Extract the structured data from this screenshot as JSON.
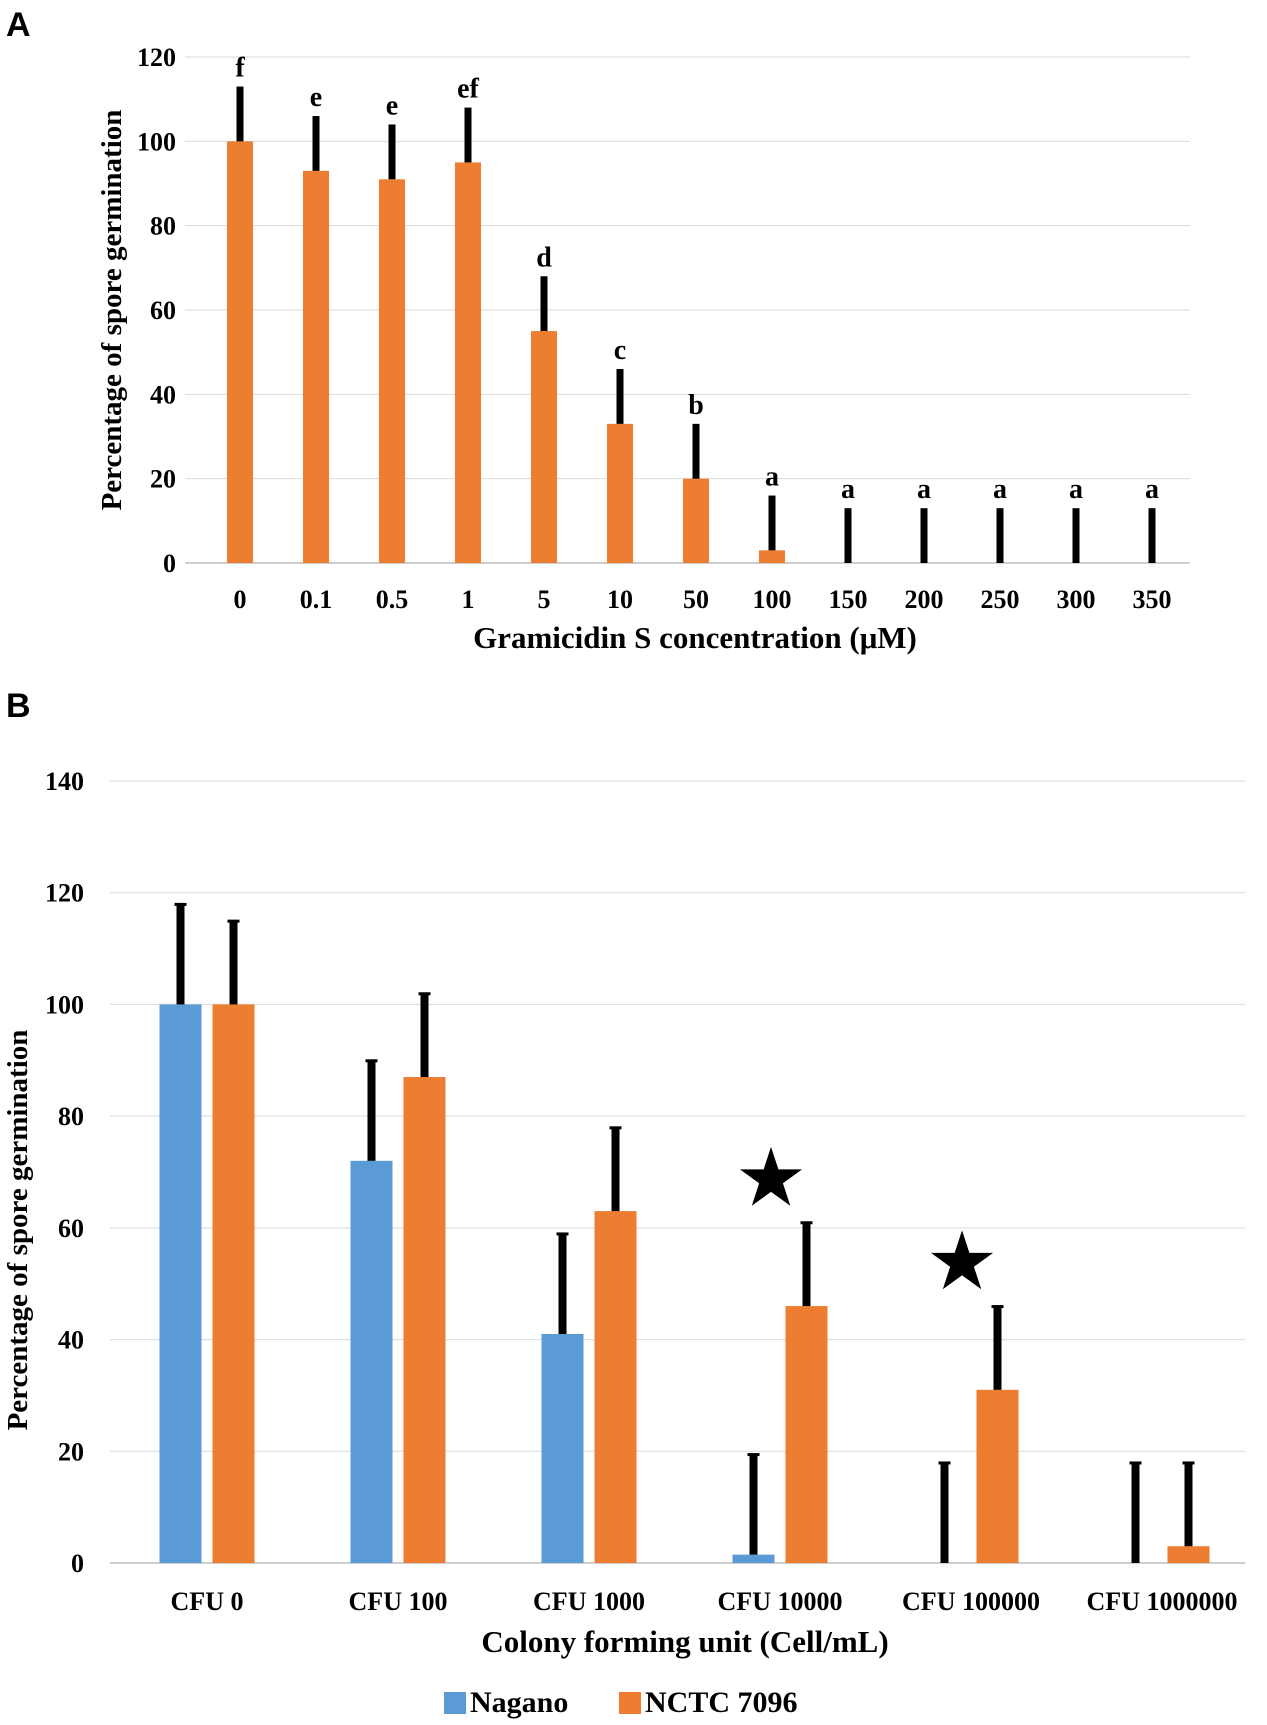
{
  "chart_data": [
    {
      "panel": "A",
      "type": "bar",
      "xlabel": "Gramicidin S concentration (μM)",
      "ylabel": "Percentage of spore germination",
      "ylim": [
        0,
        120
      ],
      "yticks": [
        0,
        20,
        40,
        60,
        80,
        100,
        120
      ],
      "grid": true,
      "bar_color": "#ED7D31",
      "error_color": "#000000",
      "categories": [
        "0",
        "0.1",
        "0.5",
        "1",
        "5",
        "10",
        "50",
        "100",
        "150",
        "200",
        "250",
        "300",
        "350"
      ],
      "values": [
        100,
        93,
        91,
        95,
        55,
        33,
        20,
        3,
        0,
        0,
        0,
        0,
        0
      ],
      "errors": [
        13,
        13,
        13,
        13,
        13,
        13,
        13,
        13,
        13,
        13,
        13,
        13,
        13
      ],
      "significance_letters": [
        "f",
        "e",
        "e",
        "ef",
        "d",
        "c",
        "b",
        "a",
        "a",
        "a",
        "a",
        "a",
        "a"
      ]
    },
    {
      "panel": "B",
      "type": "bar",
      "xlabel": "Colony forming unit (Cell/mL)",
      "ylabel": "Percentage of spore germination",
      "ylim": [
        0,
        140
      ],
      "yticks": [
        0,
        20,
        40,
        60,
        80,
        100,
        120,
        140
      ],
      "grid": true,
      "legend_position": "bottom",
      "error_color": "#000000",
      "categories": [
        "CFU 0",
        "CFU 100",
        "CFU 1000",
        "CFU 10000",
        "CFU 100000",
        "CFU 1000000"
      ],
      "series": [
        {
          "name": "Nagano",
          "color": "#5B9BD5",
          "values": [
            100,
            72,
            41,
            1.5,
            0,
            0
          ],
          "errors": [
            18,
            18,
            18,
            18,
            18,
            18
          ]
        },
        {
          "name": "NCTC 7096",
          "color": "#ED7D31",
          "values": [
            100,
            87,
            63,
            46,
            31,
            3
          ],
          "errors": [
            15,
            15,
            15,
            15,
            15,
            15
          ]
        }
      ],
      "significance_markers": [
        {
          "category": "CFU 10000",
          "symbol": "★"
        },
        {
          "category": "CFU 100000",
          "symbol": "★"
        }
      ]
    }
  ]
}
